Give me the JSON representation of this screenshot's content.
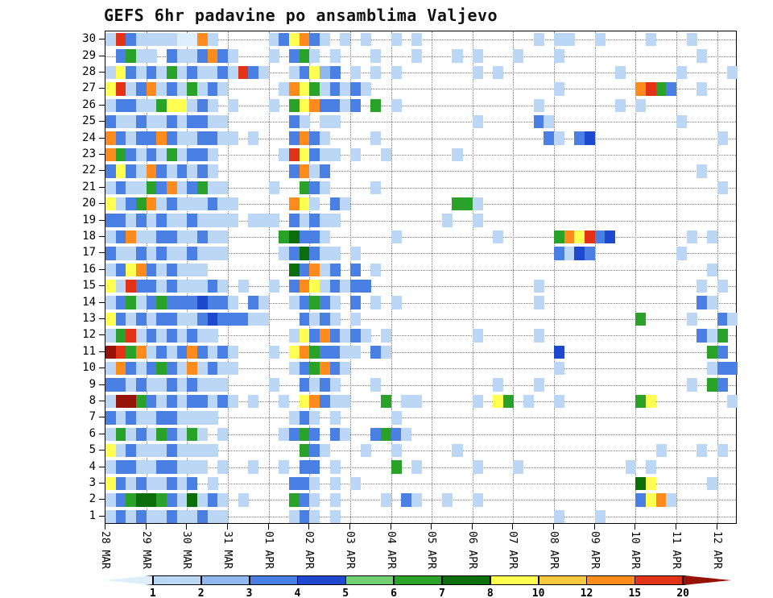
{
  "title": "GEFS 6hr padavine po ansamblima Valjevo",
  "chart_data": {
    "type": "heatmap",
    "title": "GEFS 6hr padavine po ansamblima Valjevo",
    "location": "Valjevo",
    "x_tick_labels": [
      "28 MAR",
      "29 MAR",
      "30 MAR",
      "31 MAR",
      "01 APR",
      "02 APR",
      "03 APR",
      "04 APR",
      "05 APR",
      "06 APR",
      "07 APR",
      "08 APR",
      "09 APR",
      "10 APR",
      "11 APR",
      "12 APR"
    ],
    "steps_per_day": 4,
    "n_cols": 62,
    "members_top_to_bottom": [
      30,
      29,
      28,
      27,
      26,
      25,
      24,
      23,
      22,
      21,
      20,
      19,
      18,
      17,
      16,
      15,
      14,
      13,
      12,
      11,
      10,
      9,
      8,
      7,
      6,
      5,
      4,
      3,
      2,
      1
    ],
    "legend_levels": [
      1,
      2,
      3,
      4,
      5,
      6,
      7,
      8,
      10,
      12,
      15,
      20
    ],
    "colors": [
      "#dfeefc",
      "#bcd7f6",
      "#8fb9ee",
      "#4a80e4",
      "#1e49cf",
      "#70d070",
      "#2aa22a",
      "#0b6e0b",
      "#ffff52",
      "#ffc93e",
      "#ff8b1c",
      "#e23317",
      "#971208"
    ],
    "encoding": "rows are top-to-bottom ensemble members 30..1; each row = 8 chunks joined into 62 six-hour columns from 28 MAR to 12 APR; '.'=no precip, chars 1-9,a-d index colors[0..12] (estimated values)",
    "rows": [
      [
        "2c422221",
        "1b2.....",
        "249b42.2",
        ".2..2.2.",
        "........",
        "..2.22..",
        "2....2..",
        ".2...."
      ],
      [
        ".4722.42",
        "24b42...",
        "2.472.2.",
        "..2...2.",
        "..2.2...",
        "2...2...",
        "........",
        "..2..."
      ],
      [
        "29424272",
        "42242c42",
        "..24934.",
        "2.2.2...",
        "....2.2.",
        "........",
        "..2.....",
        "2....2"
      ],
      [
        "9c24b242",
        "7242....",
        ".2b97242",
        "42......",
        "........",
        "....2...",
        "....bc74",
        "..2..."
      ],
      [
        "24422799",
        "242.2...",
        "2.79b442",
        "4.7.2...",
        "........",
        "..2.....",
        "..2.2...",
        "......"
      ],
      [
        "42242242",
        "4422....",
        "..42.22.",
        "........",
        "....2...",
        "..42....",
        "........",
        "2....."
      ],
      [
        "b4244b42",
        "24422.2.",
        "..4b42..",
        "..2.....",
        "........",
        "...42.45",
        "........",
        "....2."
      ],
      [
        "b7424272",
        "442.....",
        ".2c9422.",
        "2..2....",
        "..2.....",
        "........",
        "........",
        "......"
      ],
      [
        "4942b424",
        "242.....",
        "..4b24..",
        "........",
        "........",
        "........",
        "........",
        "..2..."
      ],
      [
        "242274b2",
        "4722....",
        "2..742..",
        "..2.....",
        "........",
        "........",
        "........",
        "....2."
      ],
      [
        "9247b242",
        "22422...",
        "..b92.42",
        "........",
        "..772...",
        "........",
        "........",
        "......"
      ],
      [
        "44242422",
        "42222.22",
        "2.42422.",
        "........",
        ".2..2...",
        "........",
        "........",
        "......"
      ],
      [
        "24b22442",
        "2422....",
        ".78442..",
        "....2...",
        "......2.",
        "....7b9c",
        "45......",
        ".2.2.."
      ],
      [
        "42242422",
        "4222....",
        ".248422.",
        "2.......",
        "........",
        "....4254",
        "........",
        "2....."
      ],
      [
        "249b4242",
        "22......",
        "..84b24.",
        "4.2.....",
        "........",
        "........",
        "........",
        "...2.."
      ],
      [
        "92c44242",
        "2242.2..",
        "2.4b9242",
        "44......",
        "........",
        "..2.....",
        "........",
        "..2.2."
      ],
      [
        "24724744",
        "45442.42",
        "..24742.",
        "4.2.2...",
        "........",
        "..2.....",
        "........",
        "..42.."
      ],
      [
        "94242442",
        "24544422",
        "...4242.",
        "2.......",
        "........",
        "........",
        "....7...",
        ".2..42"
      ],
      [
        "27c24242",
        "422.....",
        "..294b42",
        "42.2....",
        "....2...",
        "..2.....",
        "........",
        "..427."
      ],
      [
        "dc7b2424",
        "b4242...",
        "2.9b7442",
        "2.42....",
        "........",
        "....5...",
        "........",
        "...74."
      ],
      [
        "2b424742",
        "b2422...",
        "..247b42",
        "........",
        "........",
        "....2...",
        "........",
        "...244"
      ],
      [
        "44242242",
        "4222....",
        "2..4242.",
        "..2.....",
        "......2.",
        "..2.....",
        "........",
        ".2.74."
      ],
      [
        "2dd74242",
        "44242.2.",
        ".2.9b422",
        "...7.22.",
        "....2.97",
        ".2..2...",
        "....79..",
        ".....2"
      ],
      [
        "42422442",
        "222.....",
        "..242.2.",
        "....2...",
        "........",
        "........",
        "........",
        "......"
      ],
      [
        "27242742",
        "72.2....",
        ".2474.42",
        "..4742..",
        "........",
        "........",
        "........",
        "......"
      ],
      [
        "92422242",
        "222.....",
        "...742..",
        ".2..2...",
        "..2.....",
        "........",
        "......2.",
        "..2.2."
      ],
      [
        "24422442",
        "22.2..2.",
        ".2.44.2.",
        "....7.2.",
        "....2...",
        "2.......",
        "...2.2..",
        "......"
      ],
      [
        "94242242",
        "4.2.....",
        "..442.2.",
        "2.......",
        "........",
        "........",
        "....89..",
        "...2.."
      ],
      [
        "24788742",
        "8242.2..",
        "..742.2.",
        "...2.42.",
        ".2..2...",
        "........",
        "....49b2",
        "......"
      ],
      [
        "24242242",
        "2422....",
        "..242.2.",
        "........",
        "........",
        "....2...",
        "2.......",
        "......"
      ]
    ]
  }
}
